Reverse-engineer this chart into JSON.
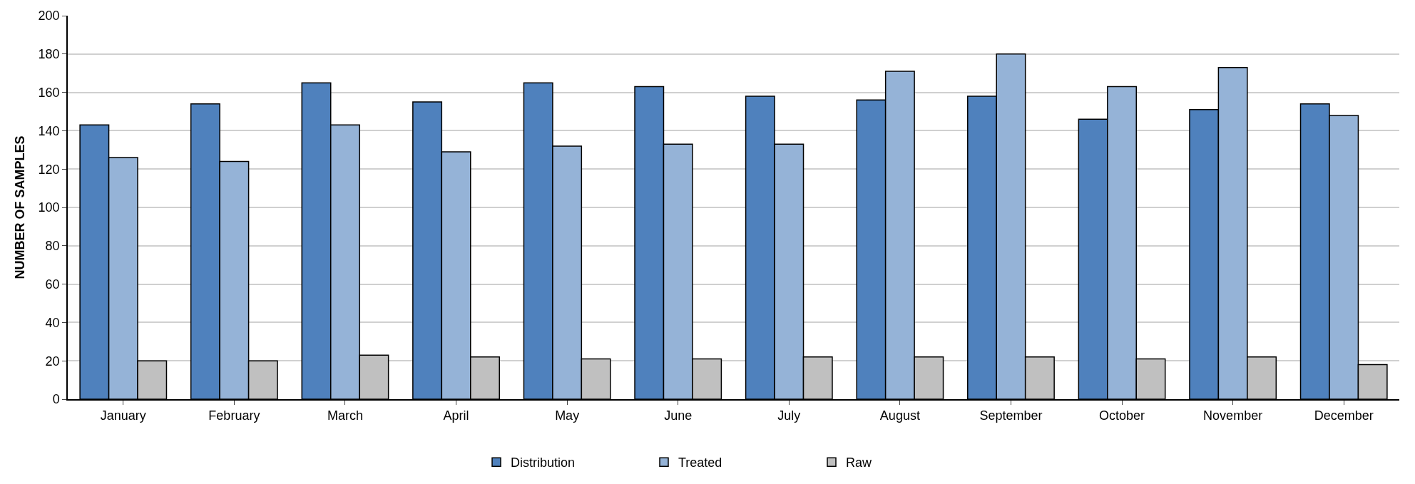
{
  "chart_data": {
    "type": "bar",
    "ylabel": "NUMBER OF SAMPLES",
    "categories": [
      "January",
      "February",
      "March",
      "April",
      "May",
      "June",
      "July",
      "August",
      "September",
      "October",
      "November",
      "December"
    ],
    "series": [
      {
        "name": "Distribution",
        "color": "#4f81bd",
        "values": [
          143,
          154,
          165,
          155,
          165,
          163,
          158,
          156,
          158,
          146,
          151,
          154
        ]
      },
      {
        "name": "Treated",
        "color": "#95b3d7",
        "values": [
          126,
          124,
          143,
          129,
          132,
          133,
          133,
          171,
          180,
          163,
          173,
          148
        ]
      },
      {
        "name": "Raw",
        "color": "#c0c0c0",
        "values": [
          20,
          20,
          23,
          22,
          21,
          21,
          22,
          22,
          22,
          21,
          22,
          18
        ]
      }
    ],
    "ylim": [
      0,
      200
    ],
    "yticks": [
      0,
      20,
      40,
      60,
      80,
      100,
      120,
      140,
      160,
      180,
      200
    ],
    "grid": "y",
    "legend": "bottom"
  }
}
